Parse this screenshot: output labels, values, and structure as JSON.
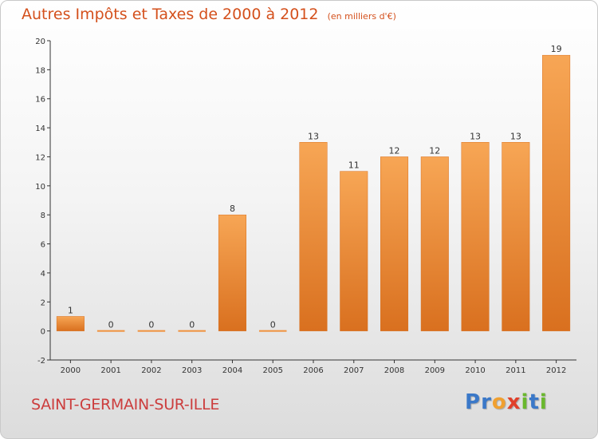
{
  "chart_data": {
    "type": "bar",
    "title": "Autres Impôts et Taxes de 2000 à 2012",
    "subtitle": "(en milliers d'€)",
    "xlabel": "",
    "ylabel": "",
    "categories": [
      "2000",
      "2001",
      "2002",
      "2003",
      "2004",
      "2005",
      "2006",
      "2007",
      "2008",
      "2009",
      "2010",
      "2011",
      "2012"
    ],
    "values": [
      1,
      0,
      0,
      0,
      8,
      0,
      13,
      11,
      12,
      12,
      13,
      13,
      19
    ],
    "ylim": [
      -2,
      20
    ],
    "yticks": [
      -2,
      0,
      2,
      4,
      6,
      8,
      10,
      12,
      14,
      16,
      18,
      20
    ],
    "grid": false,
    "legend": "none",
    "bar_color": "#f0913c",
    "bar_color_light": "#f7a655",
    "bar_color_dark": "#d9701f",
    "label_color": "#d4501c"
  },
  "footer": {
    "commune": "SAINT-GERMAIN-SUR-ILLE",
    "logo_letters": [
      {
        "ch": "P",
        "color": "#3a78c8"
      },
      {
        "ch": "r",
        "color": "#3a78c8"
      },
      {
        "ch": "o",
        "color": "#f0a030"
      },
      {
        "ch": "x",
        "color": "#e0402a"
      },
      {
        "ch": "i",
        "color": "#6ab82e"
      },
      {
        "ch": "t",
        "color": "#3a78c8"
      },
      {
        "ch": "i",
        "color": "#6ab82e"
      }
    ]
  }
}
